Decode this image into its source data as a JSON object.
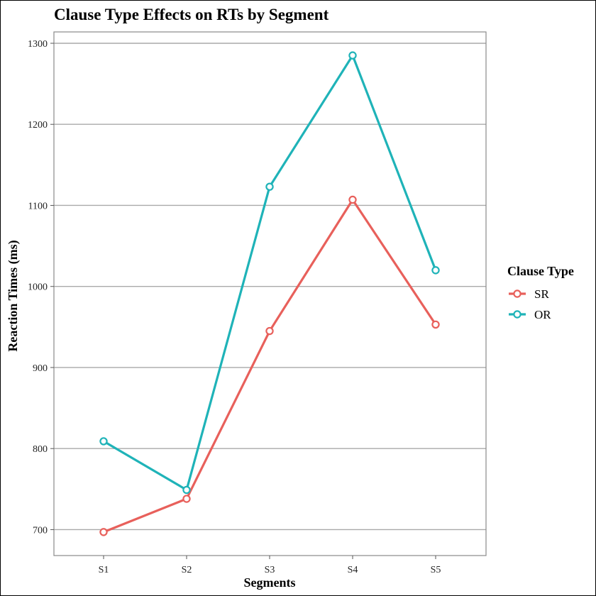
{
  "chart_data": {
    "type": "line",
    "title": "Clause Type Effects on RTs by Segment",
    "xlabel": "Segments",
    "ylabel": "Reaction Times (ms)",
    "categories": [
      "S1",
      "S2",
      "S3",
      "S4",
      "S5"
    ],
    "ylim": [
      668,
      1314
    ],
    "yticks": [
      700,
      800,
      900,
      1000,
      1100,
      1200,
      1300
    ],
    "grid": "horizontal",
    "legend": {
      "title": "Clause Type",
      "placement": "right"
    },
    "series": [
      {
        "name": "SR",
        "color": "#e8605b",
        "values": [
          697,
          738,
          945,
          1107,
          953
        ]
      },
      {
        "name": "OR",
        "color": "#1fb3b8",
        "values": [
          809,
          749,
          1123,
          1285,
          1020
        ]
      }
    ]
  }
}
